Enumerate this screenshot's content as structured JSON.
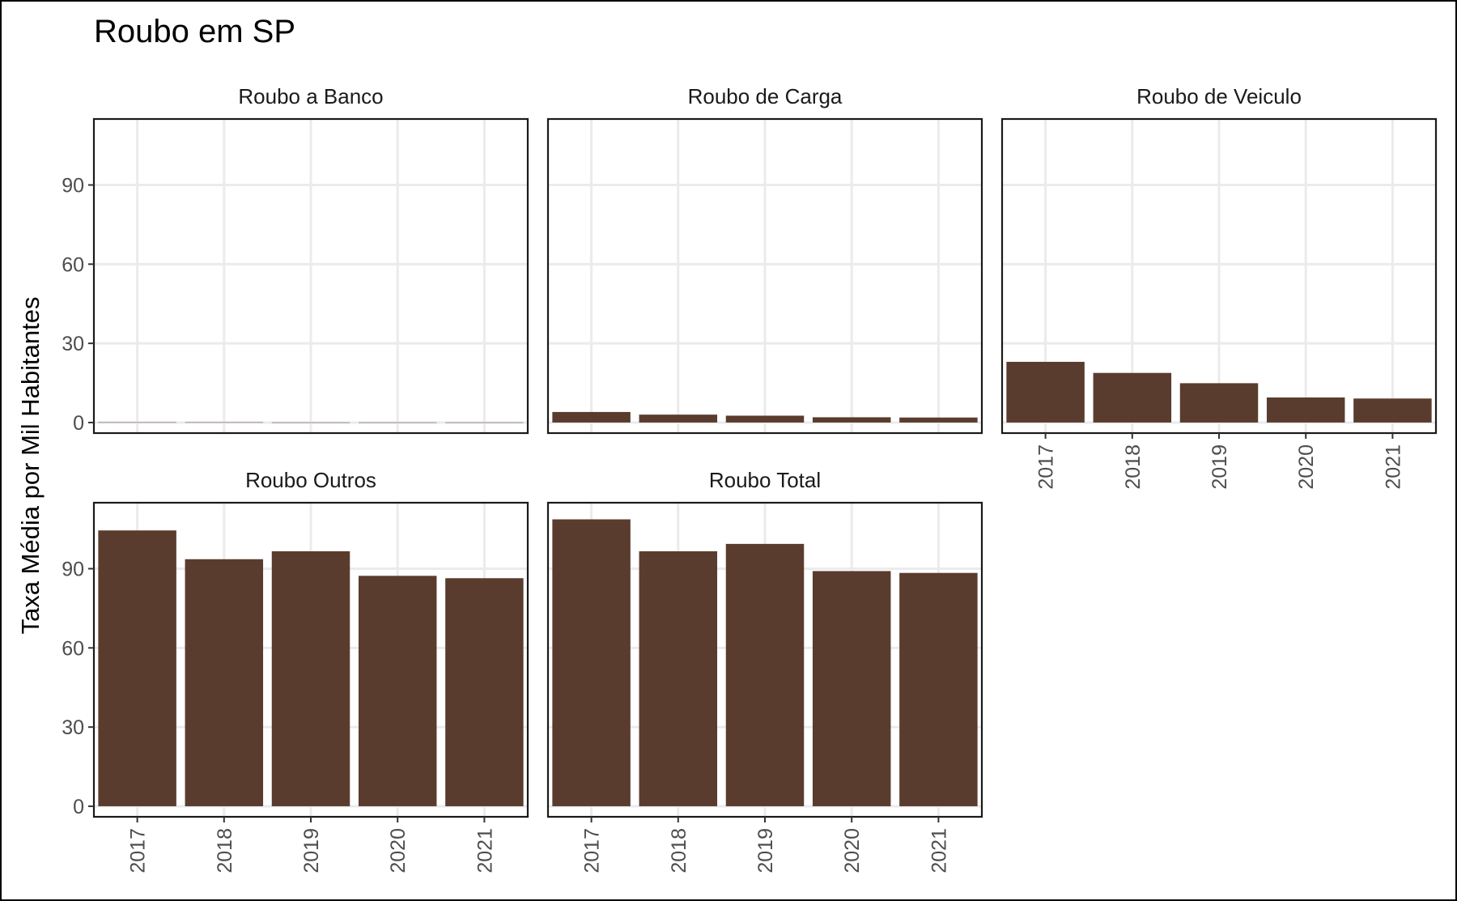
{
  "chart_data": {
    "type": "bar",
    "title": "Roubo em SP",
    "xlabel": "",
    "ylabel": "Taxa Média por Mil Habitantes",
    "categories": [
      "2017",
      "2018",
      "2019",
      "2020",
      "2021"
    ],
    "yticks": [
      "0",
      "30",
      "60",
      "90"
    ],
    "ylim": [
      -4,
      115
    ],
    "grid": true,
    "bar_color": "#5a3c2e",
    "facets": [
      {
        "name": "Roubo a Banco",
        "values": [
          0.1,
          0.1,
          0.05,
          0.05,
          0.05
        ]
      },
      {
        "name": "Roubo de Carga",
        "values": [
          4.0,
          3.0,
          2.6,
          2.0,
          1.9
        ]
      },
      {
        "name": "Roubo de Veiculo",
        "values": [
          23.0,
          18.8,
          14.9,
          9.5,
          9.1
        ]
      },
      {
        "name": "Roubo Outros",
        "values": [
          104.5,
          93.6,
          96.6,
          87.3,
          86.4
        ]
      },
      {
        "name": "Roubo Total",
        "values": [
          108.7,
          96.6,
          99.4,
          89.1,
          88.4
        ]
      }
    ]
  }
}
